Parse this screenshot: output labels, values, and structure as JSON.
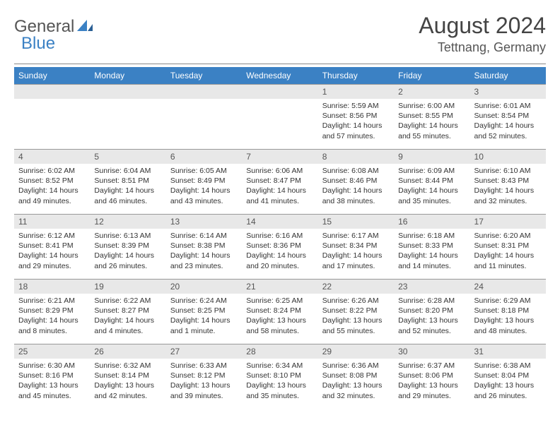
{
  "logo": {
    "part1": "General",
    "part2": "Blue"
  },
  "title": "August 2024",
  "location": "Tettnang, Germany",
  "colors": {
    "header_bg": "#3b81c4",
    "header_text": "#ffffff",
    "daynum_bg": "#e8e8e8",
    "text": "#333333",
    "logo_gray": "#555555",
    "logo_blue": "#3b81c4"
  },
  "weekdays": [
    "Sunday",
    "Monday",
    "Tuesday",
    "Wednesday",
    "Thursday",
    "Friday",
    "Saturday"
  ],
  "weeks": [
    [
      {
        "day": "",
        "sunrise": "",
        "sunset": "",
        "daylight": ""
      },
      {
        "day": "",
        "sunrise": "",
        "sunset": "",
        "daylight": ""
      },
      {
        "day": "",
        "sunrise": "",
        "sunset": "",
        "daylight": ""
      },
      {
        "day": "",
        "sunrise": "",
        "sunset": "",
        "daylight": ""
      },
      {
        "day": "1",
        "sunrise": "Sunrise: 5:59 AM",
        "sunset": "Sunset: 8:56 PM",
        "daylight": "Daylight: 14 hours and 57 minutes."
      },
      {
        "day": "2",
        "sunrise": "Sunrise: 6:00 AM",
        "sunset": "Sunset: 8:55 PM",
        "daylight": "Daylight: 14 hours and 55 minutes."
      },
      {
        "day": "3",
        "sunrise": "Sunrise: 6:01 AM",
        "sunset": "Sunset: 8:54 PM",
        "daylight": "Daylight: 14 hours and 52 minutes."
      }
    ],
    [
      {
        "day": "4",
        "sunrise": "Sunrise: 6:02 AM",
        "sunset": "Sunset: 8:52 PM",
        "daylight": "Daylight: 14 hours and 49 minutes."
      },
      {
        "day": "5",
        "sunrise": "Sunrise: 6:04 AM",
        "sunset": "Sunset: 8:51 PM",
        "daylight": "Daylight: 14 hours and 46 minutes."
      },
      {
        "day": "6",
        "sunrise": "Sunrise: 6:05 AM",
        "sunset": "Sunset: 8:49 PM",
        "daylight": "Daylight: 14 hours and 43 minutes."
      },
      {
        "day": "7",
        "sunrise": "Sunrise: 6:06 AM",
        "sunset": "Sunset: 8:47 PM",
        "daylight": "Daylight: 14 hours and 41 minutes."
      },
      {
        "day": "8",
        "sunrise": "Sunrise: 6:08 AM",
        "sunset": "Sunset: 8:46 PM",
        "daylight": "Daylight: 14 hours and 38 minutes."
      },
      {
        "day": "9",
        "sunrise": "Sunrise: 6:09 AM",
        "sunset": "Sunset: 8:44 PM",
        "daylight": "Daylight: 14 hours and 35 minutes."
      },
      {
        "day": "10",
        "sunrise": "Sunrise: 6:10 AM",
        "sunset": "Sunset: 8:43 PM",
        "daylight": "Daylight: 14 hours and 32 minutes."
      }
    ],
    [
      {
        "day": "11",
        "sunrise": "Sunrise: 6:12 AM",
        "sunset": "Sunset: 8:41 PM",
        "daylight": "Daylight: 14 hours and 29 minutes."
      },
      {
        "day": "12",
        "sunrise": "Sunrise: 6:13 AM",
        "sunset": "Sunset: 8:39 PM",
        "daylight": "Daylight: 14 hours and 26 minutes."
      },
      {
        "day": "13",
        "sunrise": "Sunrise: 6:14 AM",
        "sunset": "Sunset: 8:38 PM",
        "daylight": "Daylight: 14 hours and 23 minutes."
      },
      {
        "day": "14",
        "sunrise": "Sunrise: 6:16 AM",
        "sunset": "Sunset: 8:36 PM",
        "daylight": "Daylight: 14 hours and 20 minutes."
      },
      {
        "day": "15",
        "sunrise": "Sunrise: 6:17 AM",
        "sunset": "Sunset: 8:34 PM",
        "daylight": "Daylight: 14 hours and 17 minutes."
      },
      {
        "day": "16",
        "sunrise": "Sunrise: 6:18 AM",
        "sunset": "Sunset: 8:33 PM",
        "daylight": "Daylight: 14 hours and 14 minutes."
      },
      {
        "day": "17",
        "sunrise": "Sunrise: 6:20 AM",
        "sunset": "Sunset: 8:31 PM",
        "daylight": "Daylight: 14 hours and 11 minutes."
      }
    ],
    [
      {
        "day": "18",
        "sunrise": "Sunrise: 6:21 AM",
        "sunset": "Sunset: 8:29 PM",
        "daylight": "Daylight: 14 hours and 8 minutes."
      },
      {
        "day": "19",
        "sunrise": "Sunrise: 6:22 AM",
        "sunset": "Sunset: 8:27 PM",
        "daylight": "Daylight: 14 hours and 4 minutes."
      },
      {
        "day": "20",
        "sunrise": "Sunrise: 6:24 AM",
        "sunset": "Sunset: 8:25 PM",
        "daylight": "Daylight: 14 hours and 1 minute."
      },
      {
        "day": "21",
        "sunrise": "Sunrise: 6:25 AM",
        "sunset": "Sunset: 8:24 PM",
        "daylight": "Daylight: 13 hours and 58 minutes."
      },
      {
        "day": "22",
        "sunrise": "Sunrise: 6:26 AM",
        "sunset": "Sunset: 8:22 PM",
        "daylight": "Daylight: 13 hours and 55 minutes."
      },
      {
        "day": "23",
        "sunrise": "Sunrise: 6:28 AM",
        "sunset": "Sunset: 8:20 PM",
        "daylight": "Daylight: 13 hours and 52 minutes."
      },
      {
        "day": "24",
        "sunrise": "Sunrise: 6:29 AM",
        "sunset": "Sunset: 8:18 PM",
        "daylight": "Daylight: 13 hours and 48 minutes."
      }
    ],
    [
      {
        "day": "25",
        "sunrise": "Sunrise: 6:30 AM",
        "sunset": "Sunset: 8:16 PM",
        "daylight": "Daylight: 13 hours and 45 minutes."
      },
      {
        "day": "26",
        "sunrise": "Sunrise: 6:32 AM",
        "sunset": "Sunset: 8:14 PM",
        "daylight": "Daylight: 13 hours and 42 minutes."
      },
      {
        "day": "27",
        "sunrise": "Sunrise: 6:33 AM",
        "sunset": "Sunset: 8:12 PM",
        "daylight": "Daylight: 13 hours and 39 minutes."
      },
      {
        "day": "28",
        "sunrise": "Sunrise: 6:34 AM",
        "sunset": "Sunset: 8:10 PM",
        "daylight": "Daylight: 13 hours and 35 minutes."
      },
      {
        "day": "29",
        "sunrise": "Sunrise: 6:36 AM",
        "sunset": "Sunset: 8:08 PM",
        "daylight": "Daylight: 13 hours and 32 minutes."
      },
      {
        "day": "30",
        "sunrise": "Sunrise: 6:37 AM",
        "sunset": "Sunset: 8:06 PM",
        "daylight": "Daylight: 13 hours and 29 minutes."
      },
      {
        "day": "31",
        "sunrise": "Sunrise: 6:38 AM",
        "sunset": "Sunset: 8:04 PM",
        "daylight": "Daylight: 13 hours and 26 minutes."
      }
    ]
  ]
}
